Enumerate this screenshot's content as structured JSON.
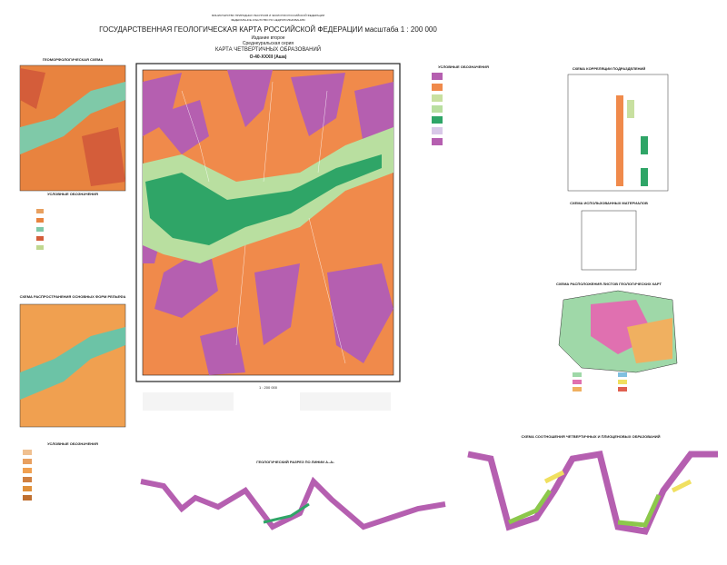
{
  "header": {
    "ministry": "МИНИСТЕРСТВО ПРИРОДНЫХ РЕСУРСОВ И ЭКОЛОГИИ РОССИЙСКОЙ ФЕДЕРАЦИИ",
    "agency": "ФЕДЕРАЛЬНОЕ АГЕНТСТВО ПО НЕДРОПОЛЬЗОВАНИЮ",
    "title": "ГОСУДАРСТВЕННАЯ ГЕОЛОГИЧЕСКАЯ КАРТА РОССИЙСКОЙ ФЕДЕРАЦИИ масштаба 1 : 200 000",
    "edition": "Издание второе",
    "series": "Среднеуральская серия",
    "map_title": "КАРТА ЧЕТВЕРТИЧНЫХ ОБРАЗОВАНИЙ",
    "sheet": "O-40-XXXII (Аша)"
  },
  "left": {
    "geomorph_title": "ГЕОМОРФОЛОГИЧЕСКАЯ СХЕМА",
    "legend_title": "УСЛОВНЫЕ ОБОЗНАЧЕНИЯ",
    "scheme2_title": "СХЕМА РАСПРОСТРАНЕНИЯ ОСНОВНЫХ ФОРМ РЕЛЬЕФА",
    "legend2_title": "УСЛОВНЫЕ ОБОЗНАЧЕНИЯ"
  },
  "map": {
    "scale": "1 : 200 000"
  },
  "right": {
    "legend_title": "УСЛОВНЫЕ ОБОЗНАЧЕНИЯ",
    "correlation_title": "СХЕМА КОРРЕЛЯЦИИ ПОДРАЗДЕЛЕНИЙ",
    "materials_title": "СХЕМА ИСПОЛЬЗОВАННЫХ МАТЕРИАЛОВ",
    "sheets_title": "СХЕМА РАСПОЛОЖЕНИЯ ЛИСТОВ ГЕОЛОГИЧЕСКИХ КАРТ"
  },
  "bottom": {
    "section_title": "ГЕОЛОГИЧЕСКИЙ РАЗРЕЗ ПО ЛИНИИ А–А₁",
    "relation_title": "СХЕМА СООТНОШЕНИЯ ЧЕТВЕРТИЧНЫХ И ПЛИОЦЕНОВЫХ ОБРАЗОВАНИЙ"
  }
}
